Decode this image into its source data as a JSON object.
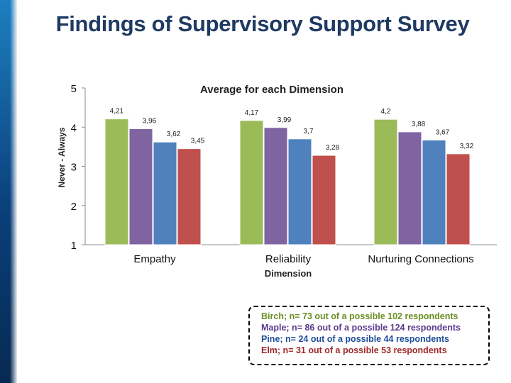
{
  "slide": {
    "title": "Findings of Supervisory Support Survey"
  },
  "legend_notes": [
    {
      "text": "Birch; n= 73 out of a possible 102 respondents",
      "color": "#6b8e23"
    },
    {
      "text": "Maple; n= 86 out of a possible 124 respondents",
      "color": "#5b3a8e"
    },
    {
      "text": "Pine; n= 24 out of a possible 44 respondents",
      "color": "#1f4e9b"
    },
    {
      "text": "Elm; n= 31 out of a possible 53 respondents",
      "color": "#a0282a"
    }
  ],
  "chart_data": {
    "type": "bar",
    "title": "Average for each Dimension",
    "xlabel": "Dimension",
    "ylabel": "Never - Always",
    "ylim": [
      1,
      5
    ],
    "yticks": [
      "1",
      "2",
      "3",
      "4",
      "5"
    ],
    "categories": [
      "Empathy",
      "Reliability",
      "Nurturing Connections"
    ],
    "series": [
      {
        "name": "Birch",
        "color": "#9bbb59",
        "values": [
          4.21,
          4.17,
          4.2
        ],
        "labels": [
          "4,21",
          "4,17",
          "4,2"
        ]
      },
      {
        "name": "Maple",
        "color": "#8064a2",
        "values": [
          3.96,
          3.99,
          3.88
        ],
        "labels": [
          "3,96",
          "3,99",
          "3,88"
        ]
      },
      {
        "name": "Pine",
        "color": "#4f81bd",
        "values": [
          3.62,
          3.7,
          3.67
        ],
        "labels": [
          "3,62",
          "3,7",
          "3,67"
        ]
      },
      {
        "name": "Elm",
        "color": "#c0504d",
        "values": [
          3.45,
          3.28,
          3.32
        ],
        "labels": [
          "3,45",
          "3,28",
          "3,32"
        ]
      }
    ]
  }
}
